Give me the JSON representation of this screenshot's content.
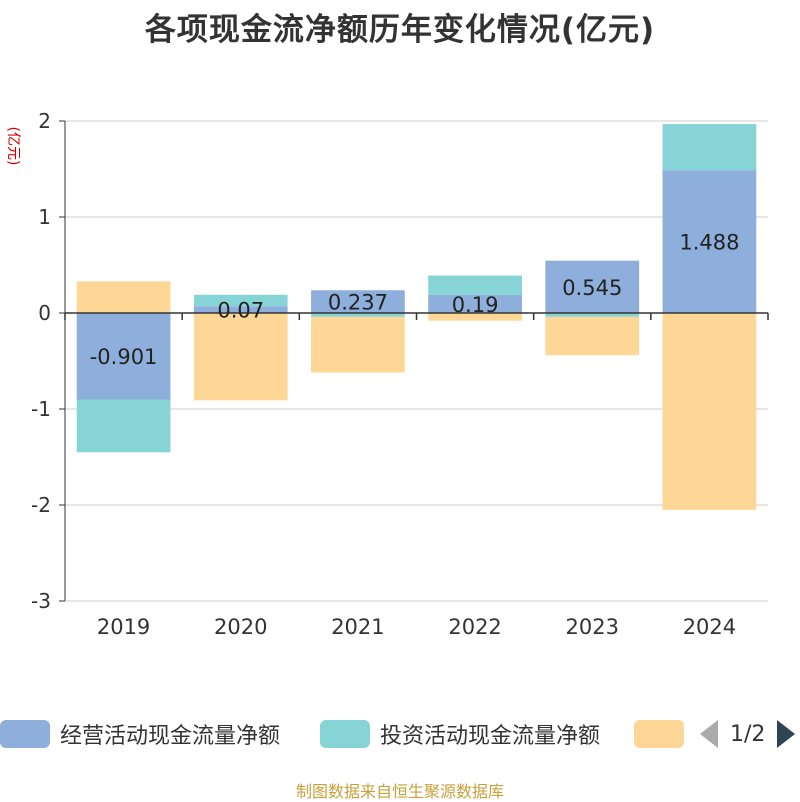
{
  "title": "各项现金流净额历年变化情况(亿元)",
  "footer": "制图数据来自恒生聚源数据库",
  "chart_data": {
    "type": "bar",
    "stacked": true,
    "ylabel": "(亿元)",
    "ylim": [
      -3,
      2
    ],
    "yticks": [
      -3,
      -2,
      -1,
      0,
      1,
      2
    ],
    "categories": [
      "2019",
      "2020",
      "2021",
      "2022",
      "2023",
      "2024"
    ],
    "grid": true,
    "legend_position": "bottom",
    "series": [
      {
        "name": "经营活动现金流量净额",
        "color": "#8eaedb",
        "values": [
          -0.901,
          0.07,
          0.237,
          0.19,
          0.545,
          1.488
        ],
        "labels": [
          "-0.901",
          "0.07",
          "0.237",
          "0.19",
          "0.545",
          "1.488"
        ]
      },
      {
        "name": "投资活动现金流量净额",
        "color": "#86d4d6",
        "values": [
          -0.55,
          0.12,
          -0.04,
          0.2,
          -0.04,
          0.48
        ]
      },
      {
        "name": "",
        "color": "#fed796",
        "values": [
          0.33,
          -0.91,
          -0.58,
          -0.08,
          -0.4,
          -2.05
        ]
      }
    ]
  },
  "legend": {
    "page": "1/2"
  }
}
